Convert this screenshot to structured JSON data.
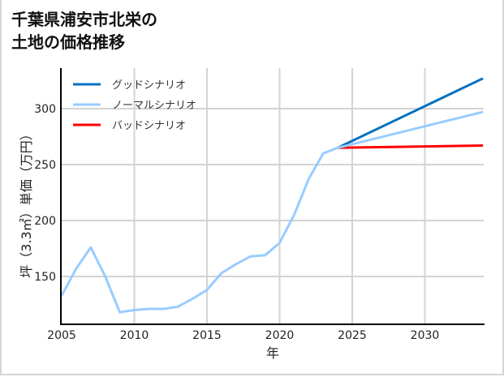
{
  "title_line1": "千葉県浦安市北栄の",
  "title_line2": "土地の価格推移",
  "chart_data": {
    "type": "line",
    "title": "千葉県浦安市北栄の土地の価格推移",
    "xlabel": "年",
    "ylabel": "坪（3.3㎡）単価（万円）",
    "xlim": [
      2005,
      2034
    ],
    "ylim": [
      112,
      340
    ],
    "xticks": [
      2005,
      2010,
      2015,
      2020,
      2025,
      2030
    ],
    "yticks": [
      150,
      200,
      250,
      300
    ],
    "grid": true,
    "legend_position": "upper left",
    "series": [
      {
        "name": "グッドシナリオ",
        "color": "#0070c0",
        "x": [
          2024,
          2034
        ],
        "values": [
          265,
          327
        ]
      },
      {
        "name": "ノーマルシナリオ",
        "color": "#99ccff",
        "x": [
          2005,
          2006,
          2007,
          2008,
          2009,
          2010,
          2011,
          2012,
          2013,
          2014,
          2015,
          2016,
          2017,
          2018,
          2019,
          2020,
          2021,
          2022,
          2023,
          2024,
          2034
        ],
        "values": [
          133,
          157,
          176,
          150,
          118,
          120,
          121,
          121,
          123,
          130,
          138,
          153,
          161,
          168,
          169,
          180,
          205,
          237,
          260,
          265,
          297
        ]
      },
      {
        "name": "バッドシナリオ",
        "color": "#ff0000",
        "x": [
          2024,
          2034
        ],
        "values": [
          265,
          267
        ]
      }
    ]
  },
  "legend": [
    {
      "label": "グッドシナリオ",
      "color": "#0070c0"
    },
    {
      "label": "ノーマルシナリオ",
      "color": "#99ccff"
    },
    {
      "label": "バッドシナリオ",
      "color": "#ff0000"
    }
  ],
  "xtick_labels": [
    "2005",
    "2010",
    "2015",
    "2020",
    "2025",
    "2030"
  ],
  "ytick_labels": [
    "300",
    "250",
    "200",
    "150"
  ],
  "xlabel": "年",
  "ylabel": "坪（3.3㎡）単価（万円）"
}
